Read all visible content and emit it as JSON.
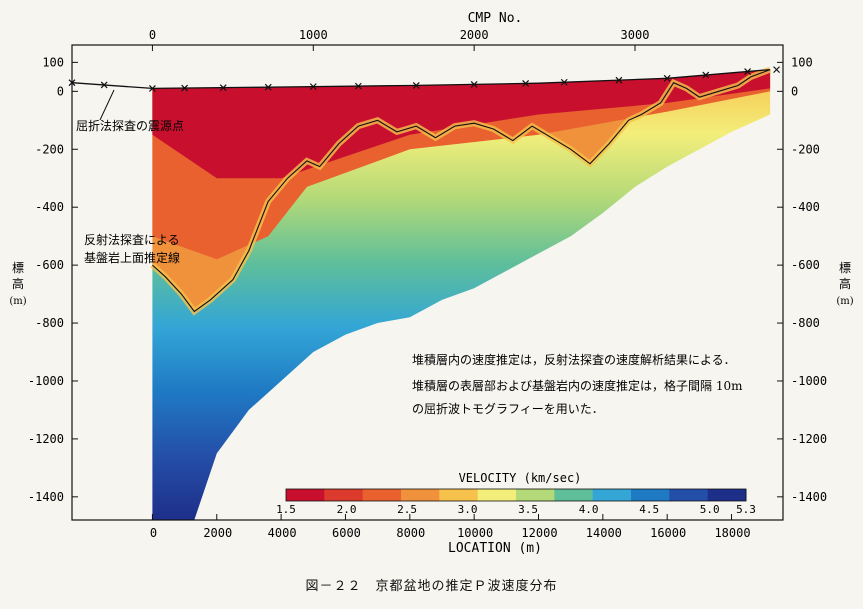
{
  "chart_data": {
    "type": "heatmap",
    "title": "",
    "top_axis": {
      "label": "CMP No.",
      "ticks": [
        0,
        1000,
        2000,
        3000
      ]
    },
    "x_axis": {
      "label": "LOCATION (m)",
      "range": [
        -2500,
        19600
      ],
      "ticks": [
        0,
        2000,
        4000,
        6000,
        8000,
        10000,
        12000,
        14000,
        16000,
        18000
      ]
    },
    "y_axis": {
      "label": [
        "標",
        "高",
        "(m)"
      ],
      "range": [
        -1480,
        160
      ],
      "ticks": [
        100,
        0,
        -200,
        -400,
        -600,
        -800,
        -1000,
        -1200,
        -1400
      ]
    },
    "colorbar": {
      "title": "VELOCITY (km/sec)",
      "ticks": [
        "1.5",
        "2.0",
        "2.5",
        "3.0",
        "3.5",
        "4.0",
        "4.5",
        "5.0",
        "5.3"
      ],
      "colors": [
        "#c8102e",
        "#dc3a2c",
        "#e8612f",
        "#f0923c",
        "#f7c24c",
        "#f3ee7a",
        "#b3d978",
        "#5fbf9a",
        "#33a6d6",
        "#1f7ac4",
        "#244fa8",
        "#1e2f8a"
      ]
    },
    "data_region": {
      "x_start": 0,
      "x_end": 19200
    },
    "surface": [
      [
        0,
        10
      ],
      [
        4000,
        15
      ],
      [
        8000,
        20
      ],
      [
        12000,
        28
      ],
      [
        16000,
        45
      ],
      [
        19200,
        75
      ]
    ],
    "shot_points": [
      -2500,
      -1500,
      0,
      1000,
      2200,
      3600,
      5000,
      6400,
      8200,
      10000,
      11600,
      12800,
      14500,
      16000,
      17200,
      18500,
      19400
    ],
    "basement": [
      [
        0,
        -600
      ],
      [
        400,
        -640
      ],
      [
        900,
        -700
      ],
      [
        1300,
        -760
      ],
      [
        1800,
        -720
      ],
      [
        2500,
        -650
      ],
      [
        3000,
        -550
      ],
      [
        3600,
        -380
      ],
      [
        4200,
        -300
      ],
      [
        4800,
        -240
      ],
      [
        5200,
        -260
      ],
      [
        5800,
        -180
      ],
      [
        6400,
        -120
      ],
      [
        7000,
        -100
      ],
      [
        7600,
        -140
      ],
      [
        8200,
        -120
      ],
      [
        8800,
        -160
      ],
      [
        9400,
        -120
      ],
      [
        10000,
        -110
      ],
      [
        10600,
        -130
      ],
      [
        11200,
        -170
      ],
      [
        11800,
        -120
      ],
      [
        12400,
        -160
      ],
      [
        13000,
        -200
      ],
      [
        13600,
        -250
      ],
      [
        14200,
        -180
      ],
      [
        14800,
        -100
      ],
      [
        15200,
        -80
      ],
      [
        15800,
        -40
      ],
      [
        16200,
        30
      ],
      [
        16600,
        10
      ],
      [
        17000,
        -20
      ],
      [
        17600,
        0
      ],
      [
        18200,
        20
      ],
      [
        18600,
        50
      ],
      [
        19200,
        75
      ]
    ],
    "velocity_bands": [
      {
        "color": "#c8102e",
        "boundary": [
          [
            0,
            -150
          ],
          [
            2000,
            -300
          ],
          [
            4000,
            -300
          ],
          [
            8000,
            -150
          ],
          [
            12000,
            -80
          ],
          [
            16000,
            -40
          ],
          [
            19200,
            10
          ]
        ]
      },
      {
        "color": "#e8612f",
        "boundary": [
          [
            0,
            -500
          ],
          [
            2000,
            -580
          ],
          [
            3600,
            -500
          ],
          [
            4800,
            -330
          ],
          [
            8000,
            -200
          ],
          [
            12000,
            -150
          ],
          [
            16000,
            -70
          ],
          [
            19200,
            0
          ]
        ]
      }
    ],
    "bottom_boundary": [
      [
        0,
        -1480
      ],
      [
        1300,
        -1480
      ],
      [
        2000,
        -1250
      ],
      [
        3000,
        -1100
      ],
      [
        4000,
        -1000
      ],
      [
        5000,
        -900
      ],
      [
        6000,
        -840
      ],
      [
        7000,
        -800
      ],
      [
        8000,
        -780
      ],
      [
        9000,
        -720
      ],
      [
        10000,
        -680
      ],
      [
        11000,
        -620
      ],
      [
        12000,
        -560
      ],
      [
        13000,
        -500
      ],
      [
        14000,
        -420
      ],
      [
        15000,
        -330
      ],
      [
        16000,
        -260
      ],
      [
        17000,
        -200
      ],
      [
        18000,
        -140
      ],
      [
        19200,
        -80
      ]
    ],
    "annotations": [
      {
        "text": "屈折法探査の震源点",
        "at_x": -1600,
        "at_y": 30
      },
      {
        "text": "反射法探査による基盤岩上面推定線",
        "at_x": 0,
        "at_y": -600
      },
      {
        "text": "堆積層内の速度推定は，反射法探査の速度解析結果による．堆積層の表層部および基盤岩内の速度推定は，格子間隔 10m の屈折波トモグラフィーを用いた．"
      }
    ]
  },
  "labels": {
    "shot_point": "屈折法探査の震源点",
    "basement_1": "反射法探査による",
    "basement_2": "基盤岩上面推定線",
    "note_1": "堆積層内の速度推定は，反射法探査の速度解析結果による．",
    "note_2": "堆積層の表層部および基盤岩内の速度推定は，格子間隔 10m",
    "note_3": "の屈折波トモグラフィーを用いた．"
  },
  "caption": "図－２２　京都盆地の推定Ｐ波速度分布"
}
